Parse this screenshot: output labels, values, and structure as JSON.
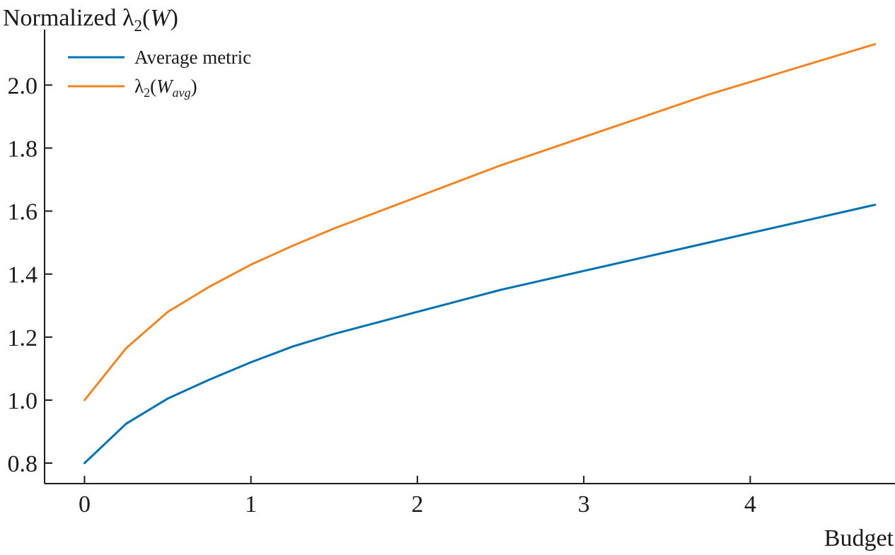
{
  "chart_data": {
    "type": "line",
    "xlabel": "Budget",
    "ylabel": "Normalized λ2(W)",
    "ylabel_parts": {
      "prefix": "Normalized ",
      "symbol": "λ",
      "sub": "2",
      "open": "(",
      "var": "W",
      "close": ")"
    },
    "xlim": [
      -0.24,
      4.87
    ],
    "ylim": [
      0.735,
      2.27
    ],
    "xticks": [
      0,
      1,
      2,
      3,
      4
    ],
    "xtick_labels": [
      "0",
      "1",
      "2",
      "3",
      "4"
    ],
    "yticks": [
      0.8,
      1.0,
      1.2,
      1.4,
      1.6,
      1.8,
      2.0
    ],
    "ytick_labels": [
      "0.8",
      "1.0",
      "1.2",
      "1.4",
      "1.6",
      "1.8",
      "2.0"
    ],
    "grid": false,
    "legend_position": "top-left",
    "series": [
      {
        "name": "Average metric",
        "color": "#0072b2",
        "x": [
          0,
          0.25,
          0.5,
          0.75,
          1.0,
          1.25,
          1.5,
          1.75,
          2.0,
          2.25,
          2.5,
          2.75,
          3.0,
          3.25,
          3.5,
          3.75,
          4.0,
          4.25,
          4.5,
          4.75
        ],
        "y": [
          0.8,
          0.925,
          1.005,
          1.065,
          1.12,
          1.17,
          1.21,
          1.245,
          1.28,
          1.315,
          1.35,
          1.38,
          1.41,
          1.44,
          1.47,
          1.5,
          1.53,
          1.56,
          1.59,
          1.62
        ]
      },
      {
        "name": "λ2(Wavg)",
        "name_parts": {
          "symbol": "λ",
          "sub": "2",
          "open": "(",
          "var": "W",
          "varsub": "avg",
          "close": ")"
        },
        "color": "#f28522",
        "x": [
          0,
          0.25,
          0.5,
          0.75,
          1.0,
          1.25,
          1.5,
          1.75,
          2.0,
          2.25,
          2.5,
          2.75,
          3.0,
          3.25,
          3.5,
          3.75,
          4.0,
          4.25,
          4.5,
          4.75
        ],
        "y": [
          1.0,
          1.165,
          1.28,
          1.36,
          1.43,
          1.49,
          1.545,
          1.595,
          1.645,
          1.695,
          1.745,
          1.79,
          1.835,
          1.88,
          1.925,
          1.97,
          2.01,
          2.05,
          2.09,
          2.13
        ]
      }
    ]
  }
}
